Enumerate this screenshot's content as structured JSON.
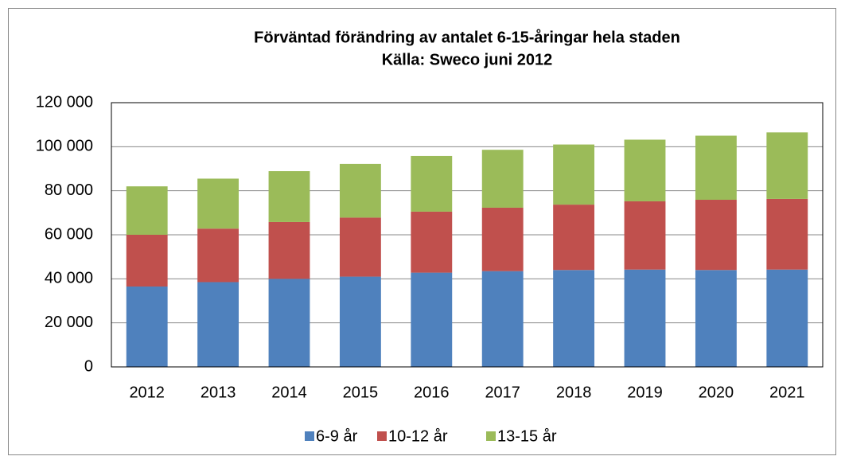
{
  "chart_data": {
    "type": "stacked_bar",
    "title": "Förväntad förändring av antalet 6-15-åringar hela staden",
    "subtitle": "Källa: Sweco juni 2012",
    "categories": [
      "2012",
      "2013",
      "2014",
      "2015",
      "2016",
      "2017",
      "2018",
      "2019",
      "2020",
      "2021"
    ],
    "series": [
      {
        "name": "6-9 år",
        "color": "#4f81bd",
        "values": [
          36500,
          38500,
          40000,
          41000,
          42800,
          43500,
          44000,
          44200,
          44000,
          44200
        ]
      },
      {
        "name": "10-12 år",
        "color": "#c0504d",
        "values": [
          23500,
          24300,
          25800,
          26800,
          27700,
          28800,
          29700,
          31000,
          31900,
          32100
        ]
      },
      {
        "name": "13-15 år",
        "color": "#9bbb59",
        "values": [
          22000,
          22700,
          23100,
          24400,
          25300,
          26300,
          27300,
          28000,
          29100,
          30200
        ]
      }
    ],
    "ylim": [
      0,
      120000
    ],
    "yticks": [
      0,
      {
        "value": 20000,
        "label": "20 000"
      },
      {
        "value": 40000,
        "label": "40 000"
      },
      {
        "value": 60000,
        "label": "60 000"
      },
      {
        "value": 80000,
        "label": "80 000"
      },
      {
        "value": 100000,
        "label": "100 000"
      },
      {
        "value": 120000,
        "label": "120 000"
      }
    ],
    "grid": true,
    "legend": "bottom"
  }
}
